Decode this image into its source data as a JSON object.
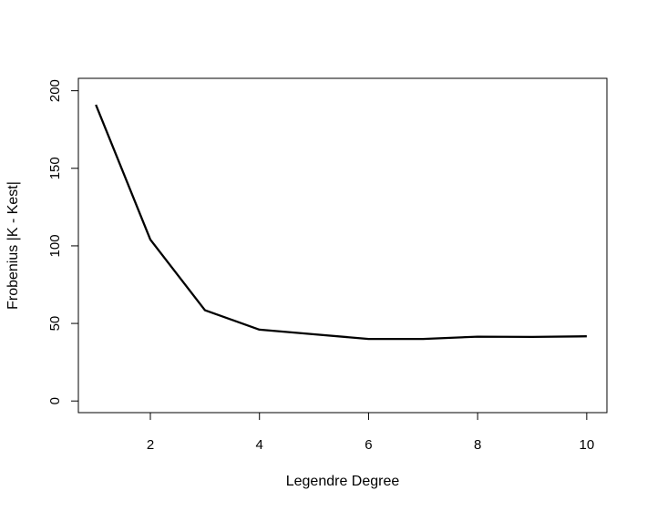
{
  "chart_data": {
    "type": "line",
    "title": "",
    "xlabel": "Legendre Degree",
    "ylabel": "Frobenius |K - Kest|",
    "x": [
      1,
      2,
      3,
      4,
      5,
      6,
      7,
      8,
      9,
      10
    ],
    "series": [
      {
        "values": [
          191,
          104,
          58.5,
          46,
          43,
          40,
          40,
          41.5,
          41.3,
          41.7
        ]
      }
    ],
    "xlim": [
      0.68,
      10.37
    ],
    "ylim": [
      -7.5,
      208
    ],
    "xticks": [
      2,
      4,
      6,
      8,
      10
    ],
    "yticks": [
      0,
      50,
      100,
      150,
      200
    ],
    "xtick_labels": [
      "2",
      "4",
      "6",
      "8",
      "10"
    ],
    "ytick_labels": [
      "0",
      "50",
      "100",
      "150",
      "200"
    ],
    "grid": false,
    "legend": "none",
    "line_color": "#000000"
  }
}
